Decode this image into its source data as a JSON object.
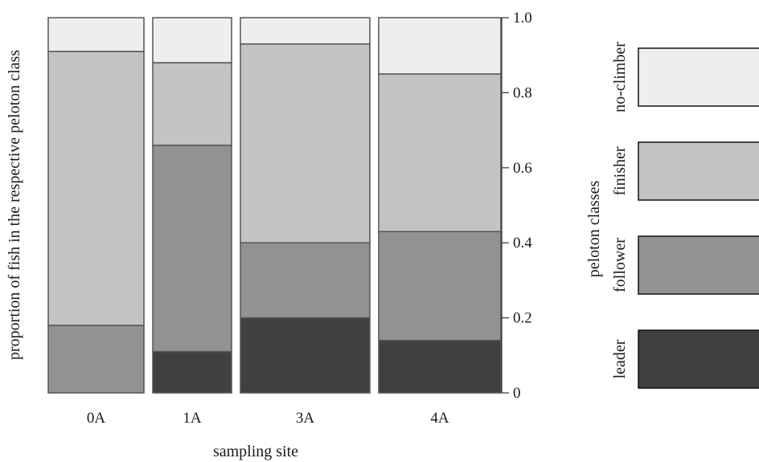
{
  "chart_data": {
    "type": "bar",
    "stacked": true,
    "variable_width": true,
    "categories": [
      "0A",
      "1A",
      "3A",
      "4A"
    ],
    "series": [
      {
        "name": "leader",
        "color": "#404040",
        "values": [
          0.0,
          0.11,
          0.2,
          0.14
        ]
      },
      {
        "name": "follower",
        "color": "#929292",
        "values": [
          0.18,
          0.55,
          0.2,
          0.29
        ]
      },
      {
        "name": "finisher",
        "color": "#c3c3c3",
        "values": [
          0.73,
          0.22,
          0.53,
          0.42
        ]
      },
      {
        "name": "no-climber",
        "color": "#eeeeee",
        "values": [
          0.09,
          0.12,
          0.07,
          0.15
        ]
      }
    ],
    "xlabel": "sampling site",
    "ylabel": "proportion of fish in the respective peloton class",
    "ylim": [
      0,
      1
    ],
    "yticks": [
      {
        "value": 0,
        "label": "0"
      },
      {
        "value": 0.2,
        "label": "0.2"
      },
      {
        "value": 0.4,
        "label": "0.4"
      },
      {
        "value": 0.6,
        "label": "0.6"
      },
      {
        "value": 0.8,
        "label": "0.8"
      },
      {
        "value": 1.0,
        "label": "1.0"
      }
    ],
    "y_axis_side": "right",
    "legend": {
      "title": "peloton classes",
      "placement": "right",
      "entries": [
        "no-climber",
        "finisher",
        "follower",
        "leader"
      ]
    }
  }
}
